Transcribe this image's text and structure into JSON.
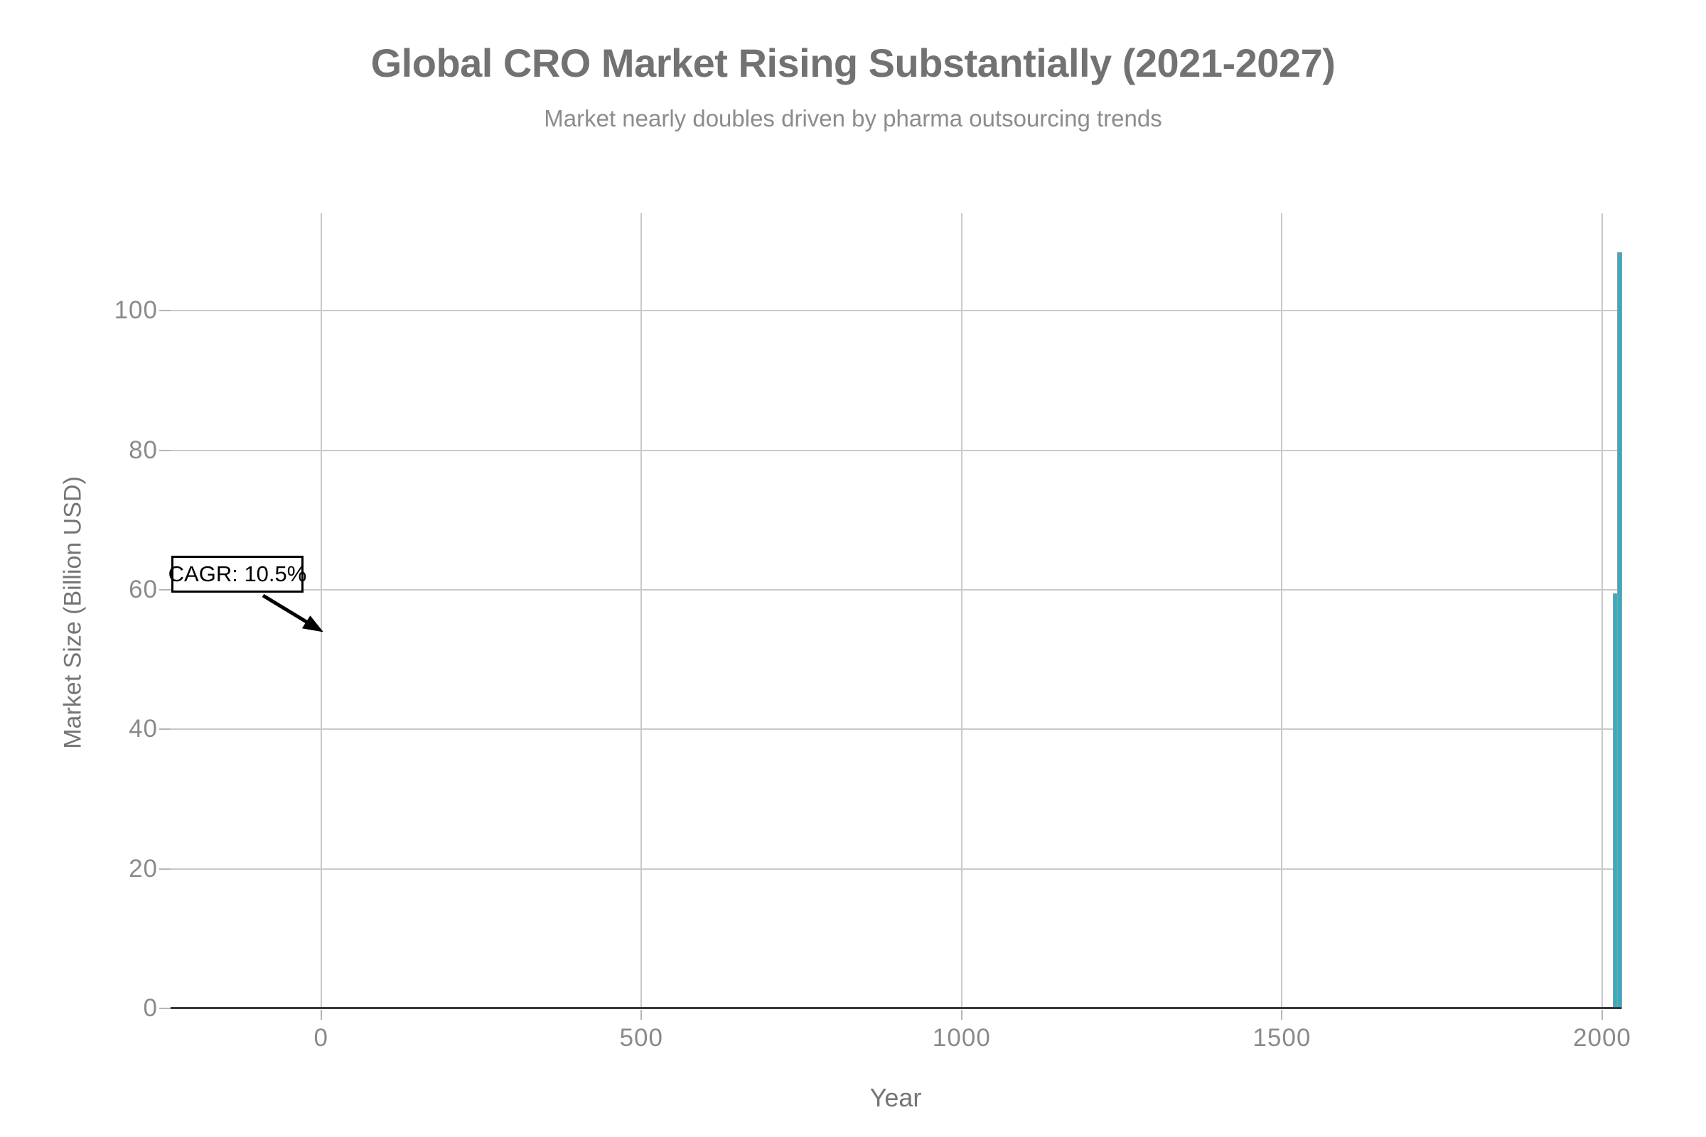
{
  "header": {
    "title": "Global CRO Market Rising Substantially (2021-2027)",
    "subtitle": "Market nearly doubles driven by pharma outsourcing trends"
  },
  "chart_data": {
    "type": "bar",
    "title": "Global CRO Market Rising Substantially (2021-2027)",
    "subtitle": "Market nearly doubles driven by pharma outsourcing trends",
    "xlabel": "Year",
    "ylabel": "Market Size (Billion USD)",
    "x": [
      2021,
      2027
    ],
    "values": [
      59.5,
      108.4
    ],
    "series_name": "Market Size (Billion USD)",
    "bar_width_x_units": 6,
    "x_ticks": [
      0,
      500,
      1000,
      1500,
      2000
    ],
    "y_ticks": [
      0,
      20,
      40,
      60,
      80,
      100
    ],
    "xlim": [
      -235,
      2030
    ],
    "ylim": [
      0,
      114
    ],
    "grid": true,
    "legend": false,
    "annotation": {
      "text": "CAGR: 10.5%",
      "arrow_tip_data_xy": [
        0,
        54
      ]
    },
    "colors": {
      "bar_fill": "#31AEC4",
      "bar_edge": "#999999",
      "title": "#727272",
      "subtitle": "#8C8C8C",
      "axis_title": "#757575",
      "tick_label": "#8A8A8A",
      "gridline": "#C9C9C9",
      "tick_mark": "#B5B5B5",
      "axis_line": "#3A3A3A",
      "annotation_text": "#000000",
      "background": "#FFFFFF"
    }
  }
}
